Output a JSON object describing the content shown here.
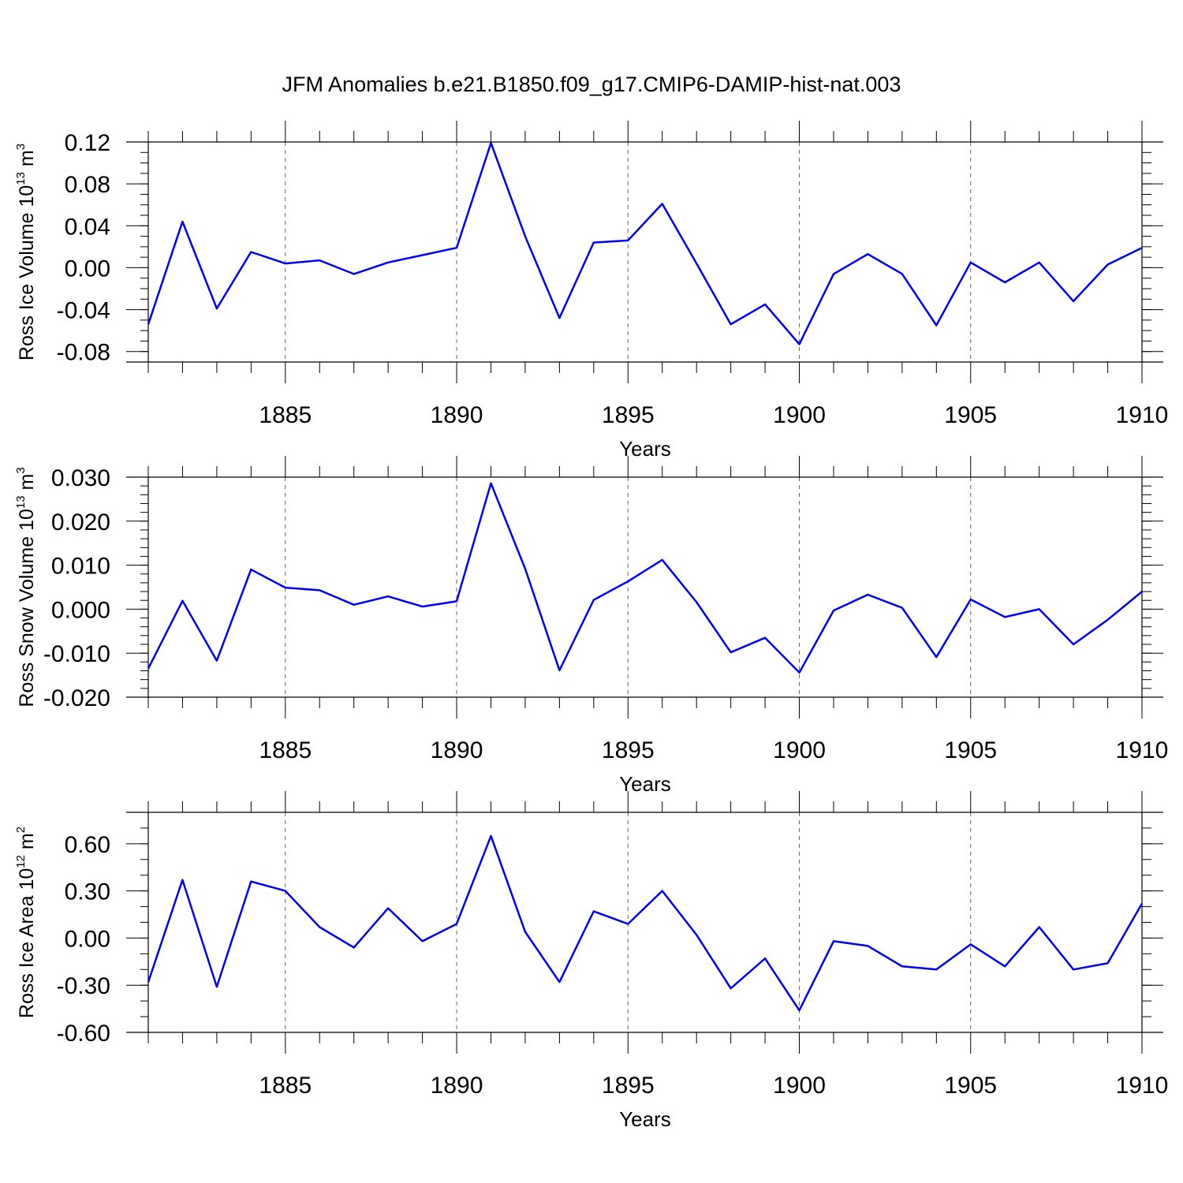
{
  "title": "JFM Anomalies b.e21.B1850.f09_g17.CMIP6-DAMIP-hist-nat.003",
  "chart_data": [
    {
      "type": "line",
      "ylabel": {
        "text": "Ross Ice Volume 10",
        "sup": "13",
        "unit": " m",
        "unit_sup": "3"
      },
      "xlabel": "Years",
      "xlim": [
        1881,
        1910
      ],
      "ylim": [
        -0.09,
        0.12
      ],
      "yticks": [
        -0.08,
        -0.04,
        0.0,
        0.04,
        0.08,
        0.12
      ],
      "ytick_labels": [
        "-0.08",
        "-0.04",
        "0.00",
        "0.04",
        "0.08",
        "0.12"
      ],
      "ytick_minor_step": 0.01,
      "xticks": [
        1885,
        1890,
        1895,
        1900,
        1905,
        1910
      ],
      "xtick_labels": [
        "1885",
        "1890",
        "1895",
        "1900",
        "1905",
        "1910"
      ],
      "grid_x": true,
      "x": [
        1881,
        1882,
        1883,
        1884,
        1885,
        1886,
        1887,
        1888,
        1889,
        1890,
        1891,
        1892,
        1893,
        1894,
        1895,
        1896,
        1897,
        1898,
        1899,
        1900,
        1901,
        1902,
        1903,
        1904,
        1905,
        1906,
        1907,
        1908,
        1909,
        1910
      ],
      "values": [
        -0.054,
        0.044,
        -0.039,
        0.015,
        0.004,
        0.007,
        -0.006,
        0.005,
        0.012,
        0.019,
        0.119,
        0.03,
        -0.048,
        0.024,
        0.026,
        0.061,
        0.004,
        -0.054,
        -0.035,
        -0.073,
        -0.006,
        0.013,
        -0.006,
        -0.055,
        0.005,
        -0.014,
        0.005,
        -0.032,
        0.003,
        0.019
      ],
      "color": "#0000ee"
    },
    {
      "type": "line",
      "ylabel": {
        "text": "Ross Snow Volume 10",
        "sup": "13",
        "unit": " m",
        "unit_sup": "3"
      },
      "xlabel": "Years",
      "xlim": [
        1881,
        1910
      ],
      "ylim": [
        -0.02,
        0.03
      ],
      "yticks": [
        -0.02,
        -0.01,
        0.0,
        0.01,
        0.02,
        0.03
      ],
      "ytick_labels": [
        "-0.020",
        "-0.010",
        "0.000",
        "0.010",
        "0.020",
        "0.030"
      ],
      "ytick_minor_step": 0.002,
      "xticks": [
        1885,
        1890,
        1895,
        1900,
        1905,
        1910
      ],
      "xtick_labels": [
        "1885",
        "1890",
        "1895",
        "1900",
        "1905",
        "1910"
      ],
      "grid_x": true,
      "x": [
        1881,
        1882,
        1883,
        1884,
        1885,
        1886,
        1887,
        1888,
        1889,
        1890,
        1891,
        1892,
        1893,
        1894,
        1895,
        1896,
        1897,
        1898,
        1899,
        1900,
        1901,
        1902,
        1903,
        1904,
        1905,
        1906,
        1907,
        1908,
        1909,
        1910
      ],
      "values": [
        -0.0135,
        0.0019,
        -0.0117,
        0.009,
        0.0049,
        0.0043,
        0.001,
        0.0029,
        0.0006,
        0.0018,
        0.0286,
        0.0092,
        -0.0139,
        0.0021,
        0.0063,
        0.0112,
        0.0016,
        -0.0098,
        -0.0065,
        -0.0144,
        -0.0003,
        0.0033,
        0.0003,
        -0.0109,
        0.0022,
        -0.0018,
        0.0,
        -0.008,
        -0.0024,
        0.004
      ],
      "color": "#0000ee"
    },
    {
      "type": "line",
      "ylabel": {
        "text": "Ross Ice Area 10",
        "sup": "12",
        "unit": " m",
        "unit_sup": "2"
      },
      "xlabel": "Years",
      "xlim": [
        1881,
        1910
      ],
      "ylim": [
        -0.6,
        0.8
      ],
      "yticks": [
        -0.6,
        -0.3,
        0.0,
        0.3,
        0.6
      ],
      "ytick_labels": [
        "-0.60",
        "-0.30",
        "0.00",
        "0.30",
        "0.60"
      ],
      "ytick_minor_step": 0.1,
      "xticks": [
        1885,
        1890,
        1895,
        1900,
        1905,
        1910
      ],
      "xtick_labels": [
        "1885",
        "1890",
        "1895",
        "1900",
        "1905",
        "1910"
      ],
      "grid_x": true,
      "x": [
        1881,
        1882,
        1883,
        1884,
        1885,
        1886,
        1887,
        1888,
        1889,
        1890,
        1891,
        1892,
        1893,
        1894,
        1895,
        1896,
        1897,
        1898,
        1899,
        1900,
        1901,
        1902,
        1903,
        1904,
        1905,
        1906,
        1907,
        1908,
        1909,
        1910
      ],
      "values": [
        -0.28,
        0.37,
        -0.31,
        0.36,
        0.3,
        0.07,
        -0.06,
        0.19,
        -0.02,
        0.09,
        0.65,
        0.04,
        -0.28,
        0.17,
        0.09,
        0.3,
        0.02,
        -0.32,
        -0.13,
        -0.46,
        -0.02,
        -0.05,
        -0.18,
        -0.2,
        -0.04,
        -0.18,
        0.07,
        -0.2,
        -0.16,
        0.22
      ],
      "color": "#0000ee"
    }
  ]
}
